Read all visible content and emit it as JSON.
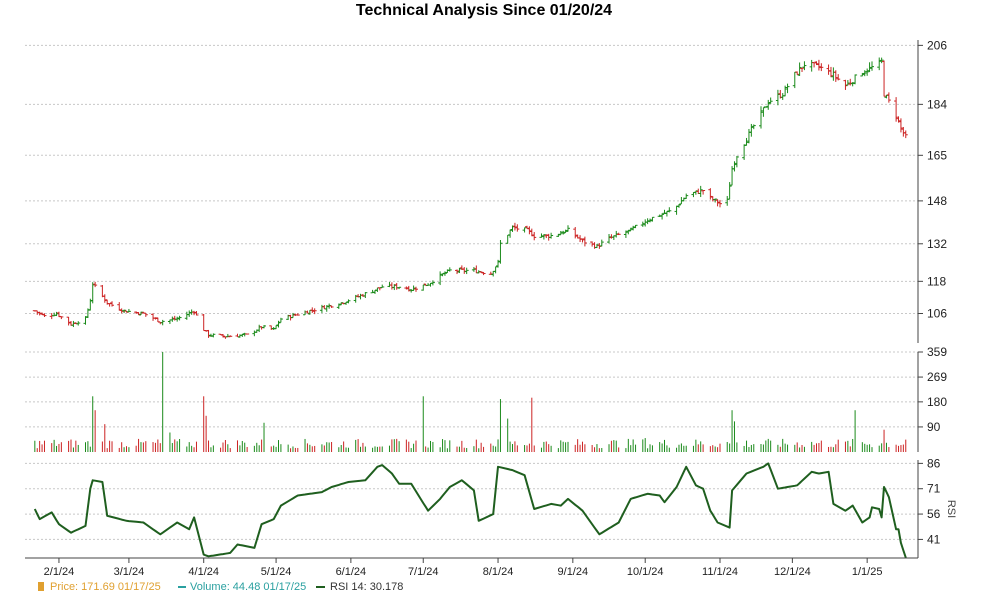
{
  "title": "Technical Analysis Since 01/20/24",
  "chart_data": [
    {
      "panel": "price",
      "type": "ohlc",
      "title": "Technical Analysis Since 01/20/24",
      "y_ticks": [
        "206",
        "184",
        "165",
        "148",
        "132",
        "118",
        "106"
      ],
      "ylim": [
        95,
        208
      ],
      "x_ticks": [
        "2/1/24",
        "3/1/24",
        "4/1/24",
        "5/1/24",
        "6/1/24",
        "7/1/24",
        "8/1/24",
        "9/1/24",
        "10/1/24",
        "11/1/24",
        "12/1/24",
        "1/1/25"
      ],
      "grid": true,
      "up_color": "#1a8a1a",
      "down_color": "#cc2222",
      "close_anchors": [
        [
          "2024-01-22",
          107
        ],
        [
          "2024-01-26",
          105
        ],
        [
          "2024-01-31",
          106
        ],
        [
          "2024-02-06",
          102
        ],
        [
          "2024-02-12",
          104
        ],
        [
          "2024-02-14",
          111
        ],
        [
          "2024-02-15",
          117
        ],
        [
          "2024-02-16",
          116
        ],
        [
          "2024-02-21",
          110
        ],
        [
          "2024-02-28",
          107
        ],
        [
          "2024-03-07",
          106
        ],
        [
          "2024-03-14",
          103
        ],
        [
          "2024-03-21",
          104
        ],
        [
          "2024-03-28",
          107
        ],
        [
          "2024-04-01",
          100
        ],
        [
          "2024-04-03",
          98
        ],
        [
          "2024-04-10",
          97.5
        ],
        [
          "2024-04-19",
          98
        ],
        [
          "2024-04-25",
          101
        ],
        [
          "2024-04-30",
          100
        ],
        [
          "2024-05-03",
          104
        ],
        [
          "2024-05-15",
          107
        ],
        [
          "2024-05-28",
          110
        ],
        [
          "2024-06-06",
          113
        ],
        [
          "2024-06-14",
          116
        ],
        [
          "2024-06-21",
          116
        ],
        [
          "2024-06-26",
          115
        ],
        [
          "2024-07-03",
          117
        ],
        [
          "2024-07-08",
          120
        ],
        [
          "2024-07-12",
          122
        ],
        [
          "2024-07-22",
          122
        ],
        [
          "2024-07-29",
          121
        ],
        [
          "2024-08-01",
          125
        ],
        [
          "2024-08-02",
          132
        ],
        [
          "2024-08-07",
          138
        ],
        [
          "2024-08-13",
          137
        ],
        [
          "2024-08-16",
          135
        ],
        [
          "2024-08-23",
          135
        ],
        [
          "2024-08-30",
          137
        ],
        [
          "2024-09-05",
          133
        ],
        [
          "2024-09-11",
          131
        ],
        [
          "2024-09-16",
          134
        ],
        [
          "2024-09-25",
          137
        ],
        [
          "2024-10-02",
          141
        ],
        [
          "2024-10-08",
          143
        ],
        [
          "2024-10-11",
          144
        ],
        [
          "2024-10-14",
          146
        ],
        [
          "2024-10-18",
          150
        ],
        [
          "2024-10-25",
          152
        ],
        [
          "2024-10-28",
          149
        ],
        [
          "2024-11-01",
          147
        ],
        [
          "2024-11-04",
          148
        ],
        [
          "2024-11-06",
          160
        ],
        [
          "2024-11-08",
          165
        ],
        [
          "2024-11-15",
          176
        ],
        [
          "2024-11-21",
          185
        ],
        [
          "2024-11-27",
          188
        ],
        [
          "2024-12-02",
          195
        ],
        [
          "2024-12-06",
          199
        ],
        [
          "2024-12-12",
          198
        ],
        [
          "2024-12-18",
          195
        ],
        [
          "2024-12-23",
          191
        ],
        [
          "2024-12-30",
          196
        ],
        [
          "2025-01-06",
          199
        ],
        [
          "2025-01-07",
          200
        ],
        [
          "2025-01-08",
          188
        ],
        [
          "2025-01-10",
          185
        ],
        [
          "2025-01-13",
          180
        ],
        [
          "2025-01-15",
          175
        ],
        [
          "2025-01-17",
          171.69
        ]
      ]
    },
    {
      "panel": "volume",
      "type": "bar",
      "y_ticks": [
        "359",
        "269",
        "180",
        "90"
      ],
      "ylim": [
        0,
        359
      ],
      "grid": true,
      "base_volume": 38,
      "spikes": [
        [
          "2024-02-15",
          200
        ],
        [
          "2024-02-16",
          150
        ],
        [
          "2024-02-20",
          100
        ],
        [
          "2024-03-15",
          359
        ],
        [
          "2024-03-18",
          70
        ],
        [
          "2024-04-01",
          200
        ],
        [
          "2024-04-02",
          130
        ],
        [
          "2024-04-26",
          105
        ],
        [
          "2024-07-01",
          200
        ],
        [
          "2024-08-02",
          190
        ],
        [
          "2024-08-05",
          120
        ],
        [
          "2024-08-15",
          195
        ],
        [
          "2024-10-01",
          50
        ],
        [
          "2024-11-06",
          150
        ],
        [
          "2024-11-07",
          110
        ],
        [
          "2024-12-27",
          150
        ],
        [
          "2025-01-08",
          80
        ]
      ],
      "last_value": 44.48
    },
    {
      "panel": "rsi",
      "type": "line",
      "ylabel": "RSI",
      "y_ticks": [
        "86",
        "71",
        "56",
        "41"
      ],
      "ylim": [
        30,
        88
      ],
      "grid": true,
      "line_color": "#1f5f1f",
      "anchors": [
        [
          "2024-01-22",
          59
        ],
        [
          "2024-01-24",
          53
        ],
        [
          "2024-01-29",
          57
        ],
        [
          "2024-02-01",
          50
        ],
        [
          "2024-02-06",
          45
        ],
        [
          "2024-02-12",
          49
        ],
        [
          "2024-02-14",
          71
        ],
        [
          "2024-02-15",
          76
        ],
        [
          "2024-02-19",
          75
        ],
        [
          "2024-02-21",
          55
        ],
        [
          "2024-02-29",
          52
        ],
        [
          "2024-03-07",
          51
        ],
        [
          "2024-03-14",
          44
        ],
        [
          "2024-03-21",
          51
        ],
        [
          "2024-03-26",
          47
        ],
        [
          "2024-03-28",
          54
        ],
        [
          "2024-04-01",
          32
        ],
        [
          "2024-04-03",
          31
        ],
        [
          "2024-04-12",
          33
        ],
        [
          "2024-04-15",
          38
        ],
        [
          "2024-04-22",
          36
        ],
        [
          "2024-04-25",
          50
        ],
        [
          "2024-04-30",
          53
        ],
        [
          "2024-05-03",
          61
        ],
        [
          "2024-05-10",
          67
        ],
        [
          "2024-05-20",
          69
        ],
        [
          "2024-05-24",
          72
        ],
        [
          "2024-05-31",
          75
        ],
        [
          "2024-06-07",
          76
        ],
        [
          "2024-06-12",
          84
        ],
        [
          "2024-06-14",
          85
        ],
        [
          "2024-06-18",
          80
        ],
        [
          "2024-06-21",
          74
        ],
        [
          "2024-06-26",
          74
        ],
        [
          "2024-07-03",
          58
        ],
        [
          "2024-07-08",
          65
        ],
        [
          "2024-07-12",
          72
        ],
        [
          "2024-07-17",
          76
        ],
        [
          "2024-07-22",
          70
        ],
        [
          "2024-07-24",
          52
        ],
        [
          "2024-07-30",
          56
        ],
        [
          "2024-08-01",
          84
        ],
        [
          "2024-08-07",
          82
        ],
        [
          "2024-08-12",
          79
        ],
        [
          "2024-08-16",
          59
        ],
        [
          "2024-08-23",
          62
        ],
        [
          "2024-08-27",
          61
        ],
        [
          "2024-08-30",
          65
        ],
        [
          "2024-09-05",
          58
        ],
        [
          "2024-09-12",
          44
        ],
        [
          "2024-09-20",
          51
        ],
        [
          "2024-09-25",
          65
        ],
        [
          "2024-10-02",
          68
        ],
        [
          "2024-10-07",
          67
        ],
        [
          "2024-10-09",
          63
        ],
        [
          "2024-10-14",
          72
        ],
        [
          "2024-10-18",
          84
        ],
        [
          "2024-10-22",
          73
        ],
        [
          "2024-10-25",
          71
        ],
        [
          "2024-10-28",
          58
        ],
        [
          "2024-10-31",
          51
        ],
        [
          "2024-11-05",
          48
        ],
        [
          "2024-11-06",
          70
        ],
        [
          "2024-11-12",
          80
        ],
        [
          "2024-11-19",
          84
        ],
        [
          "2024-11-21",
          86
        ],
        [
          "2024-11-25",
          71
        ],
        [
          "2024-11-29",
          72
        ],
        [
          "2024-12-03",
          73
        ],
        [
          "2024-12-09",
          81
        ],
        [
          "2024-12-12",
          80
        ],
        [
          "2024-12-16",
          81
        ],
        [
          "2024-12-18",
          62
        ],
        [
          "2024-12-23",
          58
        ],
        [
          "2024-12-26",
          61
        ],
        [
          "2024-12-30",
          51
        ],
        [
          "2025-01-02",
          54
        ],
        [
          "2025-01-03",
          60
        ],
        [
          "2025-01-06",
          59
        ],
        [
          "2025-01-07",
          54
        ],
        [
          "2025-01-08",
          72
        ],
        [
          "2025-01-10",
          66
        ],
        [
          "2025-01-13",
          47
        ],
        [
          "2025-01-14",
          47
        ],
        [
          "2025-01-15",
          39
        ],
        [
          "2025-01-17",
          30.178
        ]
      ]
    }
  ],
  "legend": {
    "price_icon_color": "#e0a030",
    "price_text": "Price: 171.69  01/17/25",
    "price_color": "#e0a030",
    "volume_icon_color": "#2aa0a0",
    "volume_text": "Volume: 44.48  01/17/25",
    "volume_color": "#2aa0a0",
    "rsi_icon_color": "#1f5f1f",
    "rsi_text": "RSI 14: 30.178",
    "rsi_color": "#333333"
  }
}
